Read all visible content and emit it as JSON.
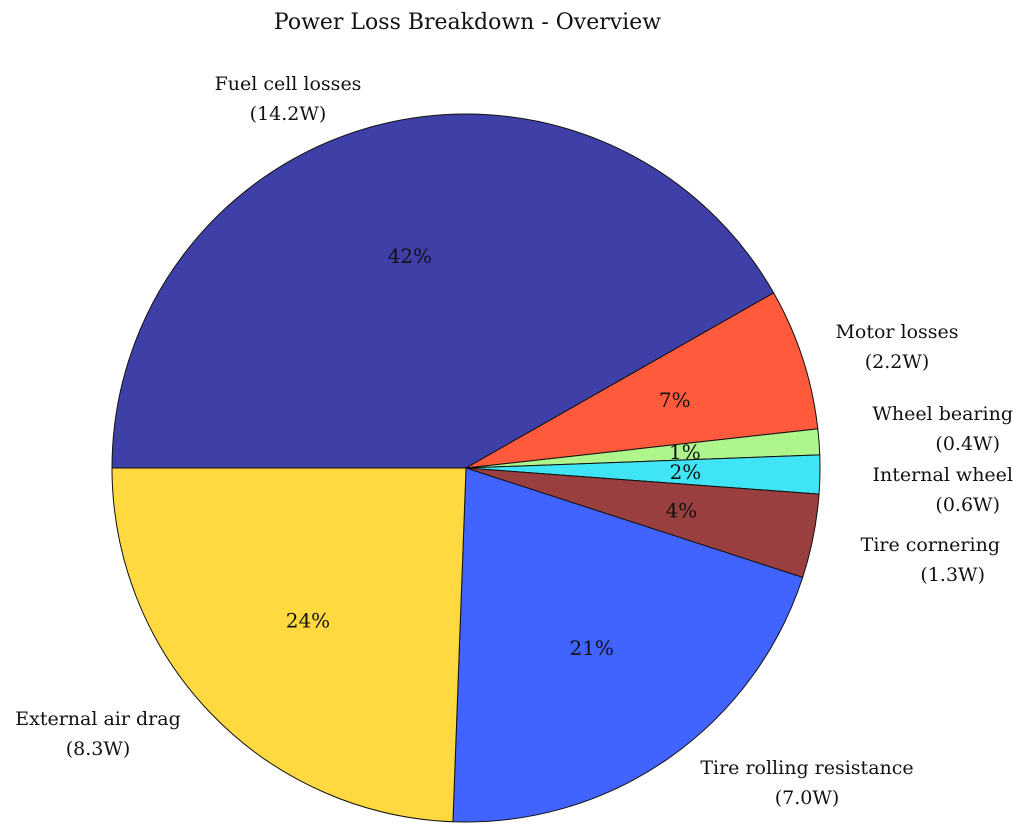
{
  "chart_data": {
    "type": "pie",
    "title": "Power Loss Breakdown - Overview",
    "slices": [
      {
        "label": "Fuel cell losses",
        "value_label": "(14.2W)",
        "value": 14.2,
        "percent_label": "42%",
        "color": "#3f3fa8"
      },
      {
        "label": "Motor losses",
        "value_label": "(2.2W)",
        "value": 2.2,
        "percent_label": "7%",
        "color": "#ff5a3c"
      },
      {
        "label": "Wheel bearing",
        "value_label": "(0.4W)",
        "value": 0.4,
        "percent_label": "1%",
        "color": "#aef58c"
      },
      {
        "label": "Internal wheel",
        "value_label": "(0.6W)",
        "value": 0.6,
        "percent_label": "2%",
        "color": "#3fe4f5"
      },
      {
        "label": "Tire cornering",
        "value_label": "(1.3W)",
        "value": 1.3,
        "percent_label": "4%",
        "color": "#993f3f"
      },
      {
        "label": "Tire rolling resistance",
        "value_label": "(7.0W)",
        "value": 7.0,
        "percent_label": "21%",
        "color": "#4163ff"
      },
      {
        "label": "External air drag",
        "value_label": "(8.3W)",
        "value": 8.3,
        "percent_label": "24%",
        "color": "#ffd93f"
      }
    ]
  }
}
